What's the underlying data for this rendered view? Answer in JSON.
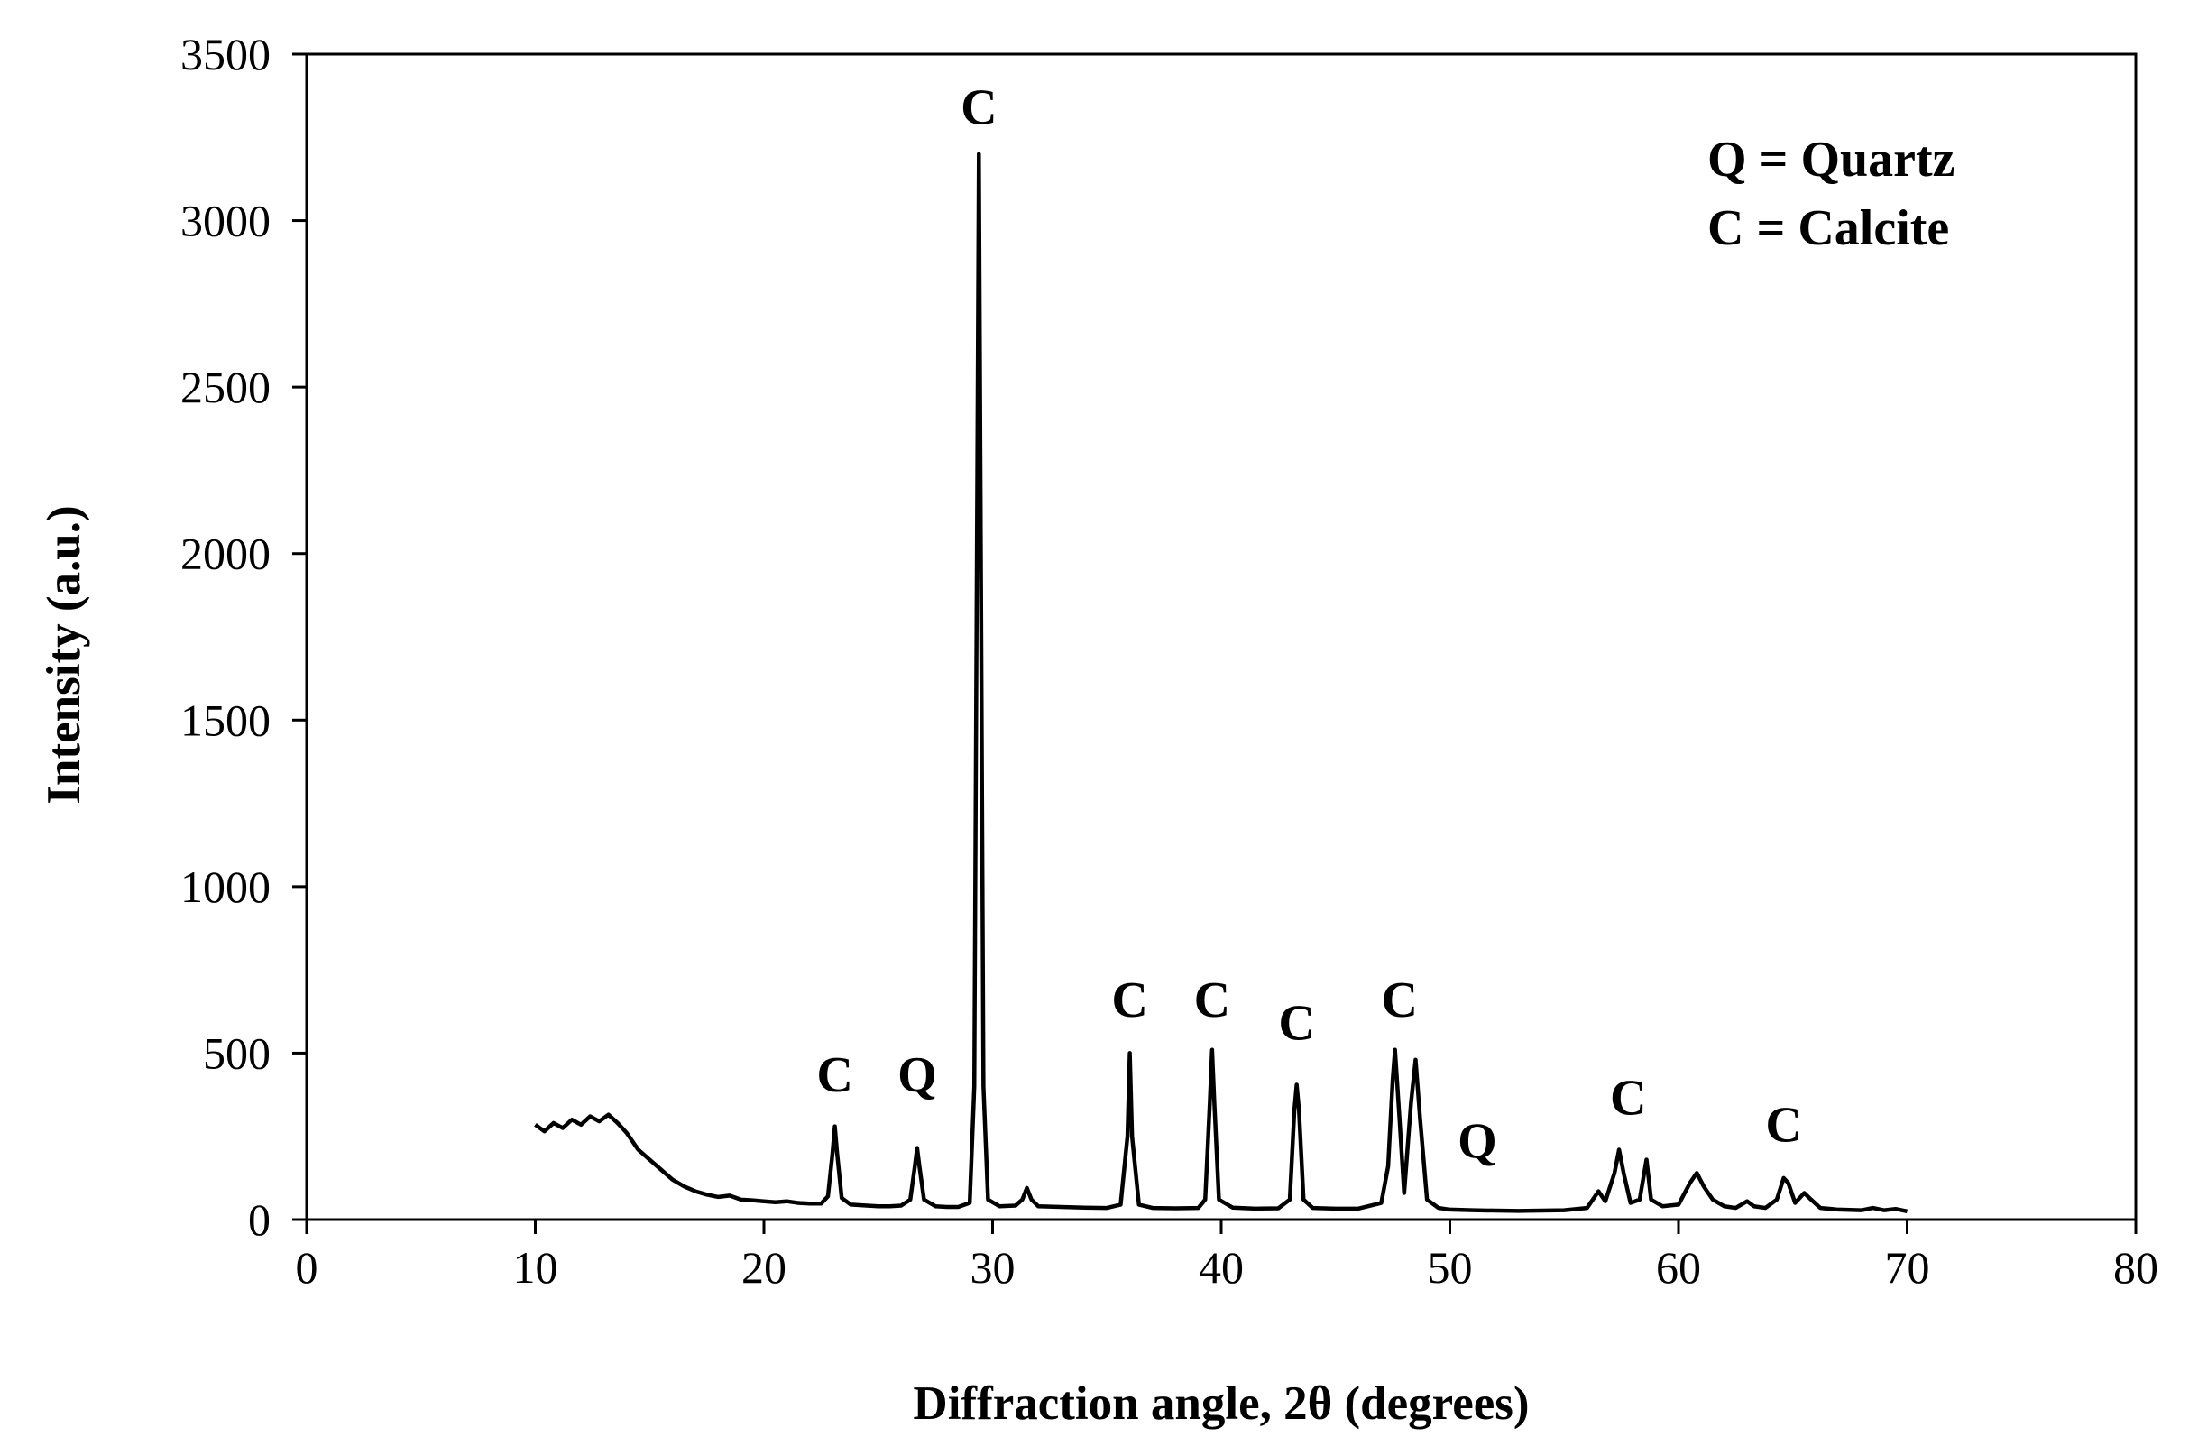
{
  "chart_data": {
    "type": "line",
    "xlabel": "Diffraction angle, 2θ (degrees)",
    "ylabel": "Intensity (a.u.)",
    "xlim": [
      0,
      80
    ],
    "ylim": [
      0,
      3500
    ],
    "x_ticks": [
      0,
      10,
      20,
      30,
      40,
      50,
      60,
      70,
      80
    ],
    "y_ticks": [
      0,
      500,
      1000,
      1500,
      2000,
      2500,
      3000,
      3500
    ],
    "grid": false,
    "legend_position": "top-right",
    "legend": [
      "Q = Quartz",
      "C = Calcite"
    ],
    "series": [
      {
        "color": "#000000",
        "points": [
          [
            10.0,
            285
          ],
          [
            10.4,
            265
          ],
          [
            10.8,
            290
          ],
          [
            11.2,
            275
          ],
          [
            11.6,
            300
          ],
          [
            12.0,
            285
          ],
          [
            12.4,
            310
          ],
          [
            12.8,
            295
          ],
          [
            13.2,
            315
          ],
          [
            13.6,
            290
          ],
          [
            14.0,
            260
          ],
          [
            14.5,
            210
          ],
          [
            15.0,
            180
          ],
          [
            15.5,
            150
          ],
          [
            16.0,
            120
          ],
          [
            16.5,
            100
          ],
          [
            17.0,
            85
          ],
          [
            17.5,
            75
          ],
          [
            18.0,
            68
          ],
          [
            18.5,
            72
          ],
          [
            19.0,
            60
          ],
          [
            19.5,
            58
          ],
          [
            20.0,
            55
          ],
          [
            20.5,
            52
          ],
          [
            21.0,
            55
          ],
          [
            21.5,
            50
          ],
          [
            22.0,
            48
          ],
          [
            22.5,
            48
          ],
          [
            22.8,
            70
          ],
          [
            23.0,
            200
          ],
          [
            23.1,
            280
          ],
          [
            23.2,
            200
          ],
          [
            23.4,
            65
          ],
          [
            23.8,
            45
          ],
          [
            24.5,
            42
          ],
          [
            25.0,
            40
          ],
          [
            25.5,
            40
          ],
          [
            26.0,
            42
          ],
          [
            26.4,
            60
          ],
          [
            26.6,
            160
          ],
          [
            26.7,
            215
          ],
          [
            26.8,
            160
          ],
          [
            27.0,
            60
          ],
          [
            27.5,
            40
          ],
          [
            28.0,
            38
          ],
          [
            28.5,
            38
          ],
          [
            29.0,
            50
          ],
          [
            29.2,
            400
          ],
          [
            29.3,
            1800
          ],
          [
            29.4,
            3200
          ],
          [
            29.5,
            1800
          ],
          [
            29.6,
            400
          ],
          [
            29.8,
            60
          ],
          [
            30.3,
            40
          ],
          [
            31.0,
            42
          ],
          [
            31.3,
            60
          ],
          [
            31.5,
            95
          ],
          [
            31.7,
            60
          ],
          [
            32.0,
            40
          ],
          [
            33.0,
            38
          ],
          [
            34.0,
            36
          ],
          [
            35.0,
            35
          ],
          [
            35.6,
            45
          ],
          [
            35.9,
            250
          ],
          [
            36.0,
            500
          ],
          [
            36.1,
            250
          ],
          [
            36.4,
            45
          ],
          [
            37.0,
            35
          ],
          [
            38.0,
            34
          ],
          [
            39.0,
            35
          ],
          [
            39.3,
            60
          ],
          [
            39.5,
            350
          ],
          [
            39.6,
            510
          ],
          [
            39.7,
            350
          ],
          [
            39.9,
            60
          ],
          [
            40.5,
            36
          ],
          [
            41.5,
            33
          ],
          [
            42.5,
            34
          ],
          [
            43.0,
            60
          ],
          [
            43.2,
            330
          ],
          [
            43.3,
            405
          ],
          [
            43.4,
            330
          ],
          [
            43.6,
            60
          ],
          [
            44.0,
            35
          ],
          [
            45.0,
            33
          ],
          [
            46.0,
            33
          ],
          [
            47.0,
            50
          ],
          [
            47.3,
            160
          ],
          [
            47.5,
            420
          ],
          [
            47.6,
            510
          ],
          [
            47.8,
            300
          ],
          [
            48.0,
            80
          ],
          [
            48.3,
            350
          ],
          [
            48.5,
            480
          ],
          [
            48.7,
            300
          ],
          [
            49.0,
            60
          ],
          [
            49.5,
            35
          ],
          [
            50.0,
            30
          ],
          [
            51.0,
            28
          ],
          [
            52.0,
            27
          ],
          [
            53.0,
            26
          ],
          [
            54.0,
            27
          ],
          [
            55.0,
            28
          ],
          [
            56.0,
            35
          ],
          [
            56.5,
            85
          ],
          [
            56.8,
            55
          ],
          [
            57.2,
            140
          ],
          [
            57.4,
            210
          ],
          [
            57.6,
            140
          ],
          [
            57.9,
            50
          ],
          [
            58.3,
            60
          ],
          [
            58.6,
            180
          ],
          [
            58.8,
            60
          ],
          [
            59.3,
            40
          ],
          [
            60.0,
            45
          ],
          [
            60.5,
            110
          ],
          [
            60.8,
            140
          ],
          [
            61.1,
            100
          ],
          [
            61.5,
            60
          ],
          [
            62.0,
            40
          ],
          [
            62.5,
            35
          ],
          [
            63.0,
            55
          ],
          [
            63.3,
            40
          ],
          [
            63.8,
            35
          ],
          [
            64.3,
            60
          ],
          [
            64.6,
            125
          ],
          [
            64.8,
            110
          ],
          [
            65.1,
            50
          ],
          [
            65.5,
            80
          ],
          [
            65.8,
            60
          ],
          [
            66.2,
            35
          ],
          [
            67.0,
            30
          ],
          [
            68.0,
            28
          ],
          [
            68.5,
            35
          ],
          [
            69.0,
            28
          ],
          [
            69.5,
            32
          ],
          [
            70.0,
            25
          ]
        ]
      }
    ],
    "annotations": [
      {
        "text": "C",
        "x": 23.1,
        "y": 385
      },
      {
        "text": "Q",
        "x": 26.7,
        "y": 385
      },
      {
        "text": "C",
        "x": 29.4,
        "y": 3290
      },
      {
        "text": "C",
        "x": 36.0,
        "y": 610
      },
      {
        "text": "C",
        "x": 39.6,
        "y": 610
      },
      {
        "text": "C",
        "x": 43.3,
        "y": 540
      },
      {
        "text": "C",
        "x": 47.8,
        "y": 610
      },
      {
        "text": "Q",
        "x": 51.2,
        "y": 185
      },
      {
        "text": "C",
        "x": 57.8,
        "y": 315
      },
      {
        "text": "C",
        "x": 64.6,
        "y": 235
      }
    ]
  }
}
